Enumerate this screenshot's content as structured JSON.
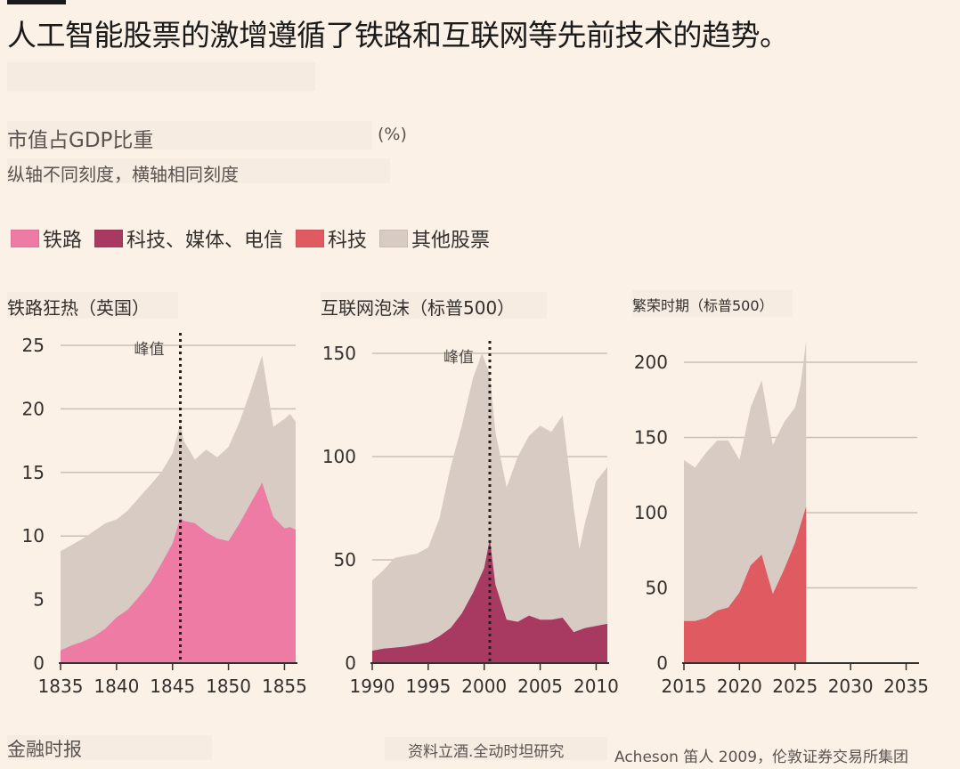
{
  "header": {
    "title": "人工智能股票的激增遵循了铁路和互联网等先前技术的趋势。",
    "subtitle": "市值占GDP比重",
    "unit": "(%)",
    "note": "纵轴不同刻度，横轴相同刻度"
  },
  "legend": [
    {
      "label": "铁路",
      "color": "#ee7ba3"
    },
    {
      "label": "科技、媒体、电信",
      "color": "#a83a62"
    },
    {
      "label": "科技",
      "color": "#e05a62"
    },
    {
      "label": "其他股票",
      "color": "#d8cbc4"
    }
  ],
  "colors": {
    "railway": "#ee7ba3",
    "tmt": "#a83a62",
    "tech": "#e05a62",
    "other": "#d8cbc4",
    "grid": "#c9bfb6",
    "axis": "#33302e"
  },
  "footer": {
    "brand": "金融时报",
    "source": "资料立酒.全动时坦研究",
    "source2": "Acheson 笛人 2009，伦敦证券交易所集团"
  },
  "chart_data": [
    {
      "type": "area",
      "title": "铁路狂热（英国）",
      "xlim": [
        1835,
        1856
      ],
      "ylim": [
        0,
        25
      ],
      "xticks": [
        1835,
        1840,
        1845,
        1850,
        1855
      ],
      "yticks": [
        0,
        5,
        10,
        15,
        20,
        25
      ],
      "peak": {
        "x": 1845.7,
        "label": "峰值"
      },
      "series": [
        {
          "name": "铁路",
          "key": "railway",
          "x": [
            1835,
            1836,
            1837,
            1838,
            1839,
            1840,
            1841,
            1842,
            1843,
            1844,
            1845,
            1845.7,
            1846,
            1847,
            1848,
            1849,
            1850,
            1851,
            1852,
            1853,
            1854,
            1855,
            1855.5,
            1856
          ],
          "values": [
            1.0,
            1.4,
            1.7,
            2.1,
            2.7,
            3.6,
            4.2,
            5.2,
            6.3,
            7.8,
            9.4,
            11.4,
            11.2,
            11.0,
            10.3,
            9.8,
            9.6,
            11.0,
            12.6,
            14.2,
            11.5,
            10.6,
            10.7,
            10.5
          ]
        },
        {
          "name": "其他股票",
          "key": "other",
          "x": [
            1835,
            1836,
            1837,
            1838,
            1839,
            1840,
            1841,
            1842,
            1843,
            1844,
            1845,
            1845.7,
            1846,
            1847,
            1848,
            1849,
            1850,
            1851,
            1852,
            1853,
            1853.4,
            1854,
            1855,
            1855.5,
            1856
          ],
          "values": [
            8.8,
            9.3,
            9.8,
            10.4,
            11.0,
            11.3,
            12.0,
            13.0,
            14.0,
            15.0,
            16.5,
            18.9,
            17.5,
            16.0,
            16.8,
            16.2,
            17.0,
            19.0,
            21.5,
            24.2,
            22.0,
            18.6,
            19.2,
            19.6,
            19.0
          ]
        }
      ]
    },
    {
      "type": "area",
      "title": "互联网泡沫（标普500）",
      "xlim": [
        1990,
        2011
      ],
      "ylim": [
        0,
        155
      ],
      "xticks": [
        1990,
        1995,
        2000,
        2005,
        2010
      ],
      "yticks": [
        0,
        50,
        100,
        150
      ],
      "peak": {
        "x": 2000.5,
        "label": "峰值"
      },
      "series": [
        {
          "name": "科技、媒体、电信",
          "key": "tmt",
          "x": [
            1990,
            1991,
            1992,
            1993,
            1994,
            1995,
            1996,
            1997,
            1998,
            1999,
            2000,
            2000.5,
            2001,
            2002,
            2003,
            2004,
            2005,
            2006,
            2007,
            2008,
            2009,
            2010,
            2011
          ],
          "values": [
            6,
            7,
            7.5,
            8,
            9,
            10,
            13,
            17,
            24,
            34,
            46,
            60,
            38,
            21,
            20,
            23,
            21,
            21,
            22,
            15,
            17,
            18,
            19
          ]
        },
        {
          "name": "其他股票",
          "key": "other",
          "x": [
            1990,
            1991,
            1992,
            1993,
            1994,
            1995,
            1996,
            1997,
            1998,
            1999,
            1999.8,
            2000.5,
            2001,
            2002,
            2003,
            2004,
            2005,
            2006,
            2007,
            2008,
            2008.5,
            2009,
            2010,
            2011
          ],
          "values": [
            40,
            45,
            51,
            52,
            53,
            56,
            70,
            95,
            115,
            138,
            150,
            140,
            112,
            85,
            100,
            110,
            115,
            112,
            120,
            75,
            55,
            68,
            88,
            95
          ]
        }
      ]
    },
    {
      "type": "area",
      "title": "繁荣时期（标普500）",
      "xlim": [
        2015,
        2036
      ],
      "ylim": [
        0,
        205
      ],
      "xticks": [
        2015,
        2020,
        2025,
        2030,
        2035
      ],
      "yticks": [
        0,
        50,
        100,
        150,
        200
      ],
      "series": [
        {
          "name": "科技",
          "key": "tech",
          "x": [
            2015,
            2016,
            2017,
            2018,
            2019,
            2020,
            2021,
            2022,
            2023,
            2024,
            2025,
            2025.5,
            2026
          ],
          "values": [
            28,
            28,
            30,
            35,
            37,
            47,
            65,
            72,
            46,
            62,
            80,
            92,
            104
          ]
        },
        {
          "name": "其他股票",
          "key": "other",
          "x": [
            2015,
            2016,
            2017,
            2018,
            2019,
            2020,
            2021,
            2022,
            2023,
            2024,
            2025,
            2025.5,
            2026
          ],
          "values": [
            135,
            130,
            140,
            148,
            148,
            135,
            170,
            188,
            145,
            160,
            170,
            185,
            214
          ]
        }
      ]
    }
  ]
}
